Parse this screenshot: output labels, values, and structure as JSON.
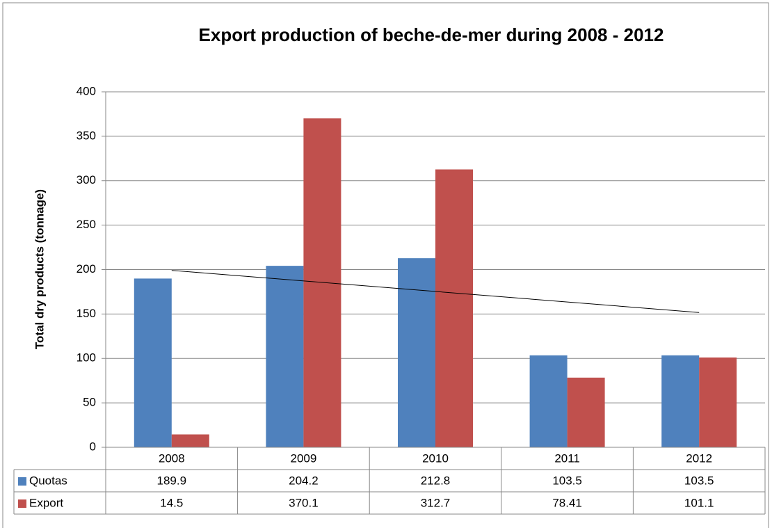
{
  "chart_data": {
    "type": "bar",
    "title": "Export production of beche-de-mer during 2008 - 2012",
    "y_label": "Total dry products (tonnage)",
    "categories": [
      "2008",
      "2009",
      "2010",
      "2011",
      "2012"
    ],
    "series": [
      {
        "name": "Quotas",
        "color": "#4f81bd",
        "values": [
          189.9,
          204.2,
          212.8,
          103.5,
          103.5
        ]
      },
      {
        "name": "Export",
        "color": "#c0504d",
        "values": [
          14.5,
          370.1,
          312.7,
          78.41,
          101.1
        ],
        "trendline": "linear"
      }
    ],
    "ylim": [
      0,
      400
    ],
    "yticks": [
      0,
      50,
      100,
      150,
      200,
      250,
      300,
      350,
      400
    ],
    "grid": true,
    "data_table": true
  }
}
